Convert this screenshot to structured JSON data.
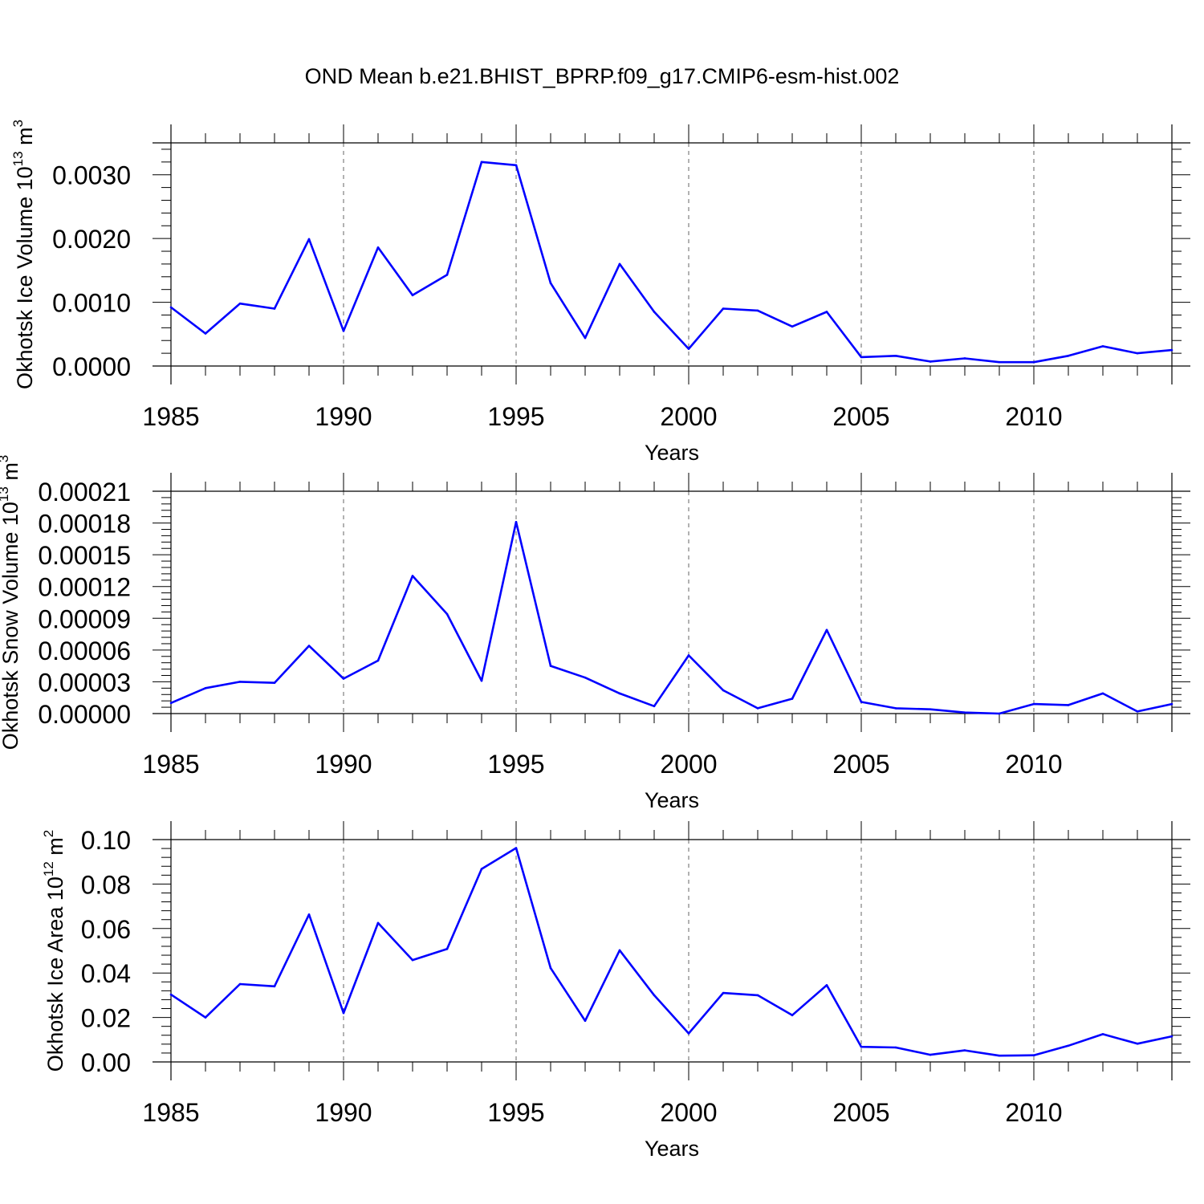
{
  "title": "OND Mean b.e21.BHIST_BPRP.f09_g17.CMIP6-esm-hist.002",
  "line_color": "#0000ff",
  "chart_data": [
    {
      "type": "line",
      "title": "OND Mean b.e21.BHIST_BPRP.f09_g17.CMIP6-esm-hist.002",
      "xlabel": "Years",
      "ylabel": {
        "main": "Okhotsk Ice Volume 10",
        "exp": "13",
        "unit": " m",
        "unit_exp": "3"
      },
      "xlim": [
        1985,
        2014
      ],
      "ylim": [
        0,
        0.0035
      ],
      "x_ticks": [
        1985,
        1990,
        1995,
        2000,
        2005,
        2010
      ],
      "x_tick_labels": [
        "1985",
        "1990",
        "1995",
        "2000",
        "2005",
        "2010"
      ],
      "y_ticks": [
        0,
        0.001,
        0.002,
        0.003
      ],
      "y_tick_labels": [
        "0.0000",
        "0.0010",
        "0.0020",
        "0.0030"
      ],
      "grid": "vertical dashed at major x ticks",
      "x": [
        1985,
        1986,
        1987,
        1988,
        1989,
        1990,
        1991,
        1992,
        1993,
        1994,
        1995,
        1996,
        1997,
        1998,
        1999,
        2000,
        2001,
        2002,
        2003,
        2004,
        2005,
        2006,
        2007,
        2008,
        2009,
        2010,
        2011,
        2012,
        2013,
        2014
      ],
      "values": [
        0.00092,
        0.00051,
        0.00098,
        0.0009,
        0.00199,
        0.00055,
        0.00186,
        0.00111,
        0.00143,
        0.0032,
        0.00315,
        0.0013,
        0.00044,
        0.0016,
        0.00085,
        0.00027,
        0.0009,
        0.00087,
        0.00062,
        0.00085,
        0.00014,
        0.00016,
        7e-05,
        0.00012,
        6e-05,
        6e-05,
        0.00016,
        0.00031,
        0.0002,
        0.00025
      ]
    },
    {
      "type": "line",
      "xlabel": "Years",
      "ylabel": {
        "main": "Okhotsk Snow Volume 10",
        "exp": "13",
        "unit": " m",
        "unit_exp": "3"
      },
      "xlim": [
        1985,
        2014
      ],
      "ylim": [
        0,
        0.00021
      ],
      "x_ticks": [
        1985,
        1990,
        1995,
        2000,
        2005,
        2010
      ],
      "x_tick_labels": [
        "1985",
        "1990",
        "1995",
        "2000",
        "2005",
        "2010"
      ],
      "y_ticks": [
        0,
        3e-05,
        6e-05,
        9e-05,
        0.00012,
        0.00015,
        0.00018,
        0.00021
      ],
      "y_tick_labels": [
        "0.00000",
        "0.00003",
        "0.00006",
        "0.00009",
        "0.00012",
        "0.00015",
        "0.00018",
        "0.00021"
      ],
      "grid": "vertical dashed at major x ticks",
      "x": [
        1985,
        1986,
        1987,
        1988,
        1989,
        1990,
        1991,
        1992,
        1993,
        1994,
        1995,
        1996,
        1997,
        1998,
        1999,
        2000,
        2001,
        2002,
        2003,
        2004,
        2005,
        2006,
        2007,
        2008,
        2009,
        2010,
        2011,
        2012,
        2013,
        2014
      ],
      "values": [
        1e-05,
        2.4e-05,
        3e-05,
        2.9e-05,
        6.4e-05,
        3.3e-05,
        5e-05,
        0.00013,
        9.4e-05,
        3.1e-05,
        0.000181,
        4.5e-05,
        3.4e-05,
        1.9e-05,
        7e-06,
        5.5e-05,
        2.2e-05,
        5e-06,
        1.4e-05,
        7.9e-05,
        1.1e-05,
        5e-06,
        4e-06,
        1e-06,
        0.0,
        9e-06,
        8e-06,
        1.9e-05,
        2e-06,
        9e-06
      ]
    },
    {
      "type": "line",
      "xlabel": "Years",
      "ylabel": {
        "main": "Okhotsk Ice Area 10",
        "exp": "12",
        "unit": " m",
        "unit_exp": "2"
      },
      "xlim": [
        1985,
        2014
      ],
      "ylim": [
        0,
        0.1
      ],
      "x_ticks": [
        1985,
        1990,
        1995,
        2000,
        2005,
        2010
      ],
      "x_tick_labels": [
        "1985",
        "1990",
        "1995",
        "2000",
        "2005",
        "2010"
      ],
      "y_ticks": [
        0,
        0.02,
        0.04,
        0.06,
        0.08,
        0.1
      ],
      "y_tick_labels": [
        "0.00",
        "0.02",
        "0.04",
        "0.06",
        "0.08",
        "0.10"
      ],
      "grid": "vertical dashed at major x ticks",
      "x": [
        1985,
        1986,
        1987,
        1988,
        1989,
        1990,
        1991,
        1992,
        1993,
        1994,
        1995,
        1996,
        1997,
        1998,
        1999,
        2000,
        2001,
        2002,
        2003,
        2004,
        2005,
        2006,
        2007,
        2008,
        2009,
        2010,
        2011,
        2012,
        2013,
        2014
      ],
      "values": [
        0.0303,
        0.02,
        0.035,
        0.034,
        0.0663,
        0.022,
        0.0625,
        0.0458,
        0.0508,
        0.0868,
        0.0962,
        0.0422,
        0.0185,
        0.0502,
        0.03,
        0.0128,
        0.031,
        0.03,
        0.021,
        0.0345,
        0.0068,
        0.0065,
        0.0032,
        0.0052,
        0.0028,
        0.003,
        0.0073,
        0.0125,
        0.0082,
        0.0115
      ]
    }
  ]
}
